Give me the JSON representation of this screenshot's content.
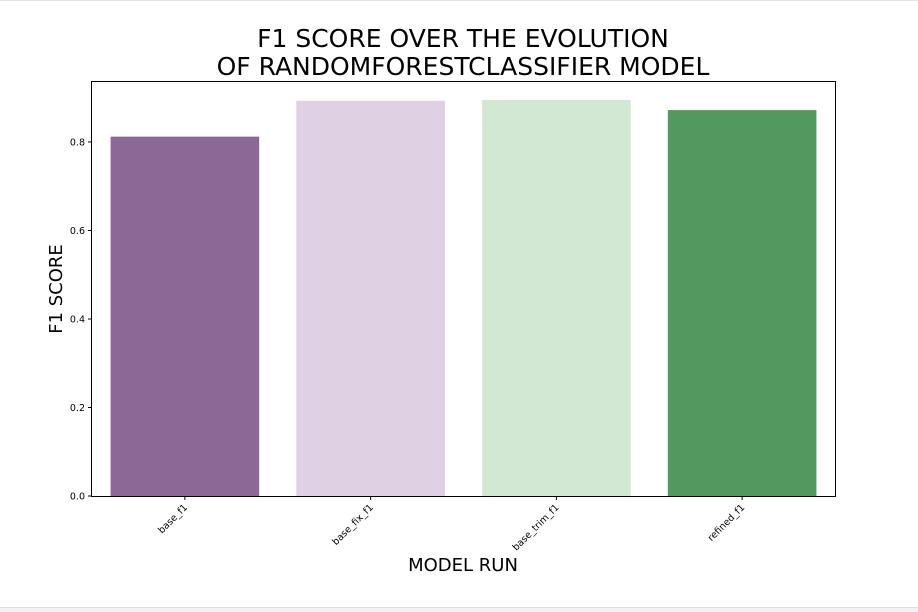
{
  "chart_data": {
    "type": "bar",
    "title_lines": [
      "F1 SCORE OVER THE EVOLUTION",
      "OF RANDOMFORESTCLASSIFIER MODEL"
    ],
    "xlabel": "MODEL RUN",
    "ylabel": "F1 SCORE",
    "categories": [
      "base_f1",
      "base_fix_f1",
      "base_trim_f1",
      "refined_f1"
    ],
    "values": [
      0.812,
      0.893,
      0.895,
      0.872
    ],
    "colors": [
      "#8c6897",
      "#e0d0e3",
      "#d3e8d2",
      "#52985f"
    ],
    "ylim": [
      0,
      0.9355
    ],
    "yticks": [
      0.0,
      0.2,
      0.4,
      0.6,
      0.8
    ],
    "ytick_labels": [
      "0.0",
      "0.2",
      "0.4",
      "0.6",
      "0.8"
    ],
    "grid": false,
    "legend": false
  }
}
